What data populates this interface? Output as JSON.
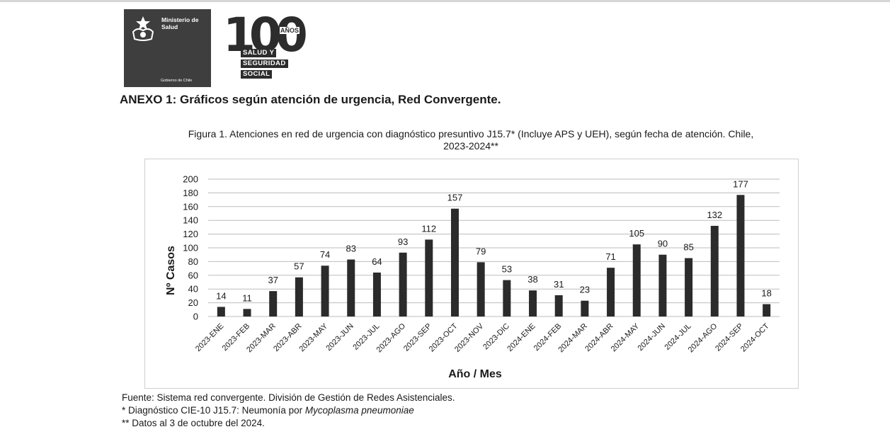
{
  "logos": {
    "ministry_lines": [
      "Ministerio de",
      "Salud"
    ],
    "government": "Gobierno de Chile",
    "centenary_number": "100",
    "centenary_suffix": "AÑOS",
    "centenary_tags": [
      "SALUD Y",
      "SEGURIDAD",
      "SOCIAL"
    ]
  },
  "annex_title": "ANEXO 1: Gráficos según atención de urgencia, Red Convergente.",
  "figure_caption_line1": "Figura 1. Atenciones en red de urgencia con diagnóstico presuntivo J15.7* (Incluye APS y UEH), según fecha de atención. Chile,",
  "figure_caption_line2": "2023-2024**",
  "chart_data": {
    "type": "bar",
    "title": "",
    "xlabel": "Año / Mes",
    "ylabel": "Nº Casos",
    "ylim": [
      0,
      200
    ],
    "yticks": [
      0,
      20,
      40,
      60,
      80,
      100,
      120,
      140,
      160,
      180,
      200
    ],
    "grid": true,
    "legend": "none",
    "categories": [
      "2023-ENE",
      "2023-FEB",
      "2023-MAR",
      "2023-ABR",
      "2023-MAY",
      "2023-JUN",
      "2023-JUL",
      "2023-AGO",
      "2023-SEP",
      "2023-OCT",
      "2023-NOV",
      "2023-DIC",
      "2024-ENE",
      "2024-FEB",
      "2024-MAR",
      "2024-ABR",
      "2024-MAY",
      "2024-JUN",
      "2024-JUL",
      "2024-AGO",
      "2024-SEP",
      "2024-OCT"
    ],
    "values": [
      14,
      11,
      37,
      57,
      74,
      83,
      64,
      93,
      112,
      157,
      79,
      53,
      38,
      31,
      23,
      71,
      105,
      90,
      85,
      132,
      177,
      18
    ],
    "bar_color": "#2b2b2b",
    "grid_color": "#bdbdbd"
  },
  "notes": {
    "source": "Fuente: Sistema red convergente. División de Gestión de Redes Asistenciales.",
    "diagnosis_prefix": "* Diagnóstico CIE-10 J15.7: Neumonía por ",
    "diagnosis_organism": "Mycoplasma pneumoniae",
    "data_cutoff": "** Datos al 3 de octubre del 2024."
  }
}
